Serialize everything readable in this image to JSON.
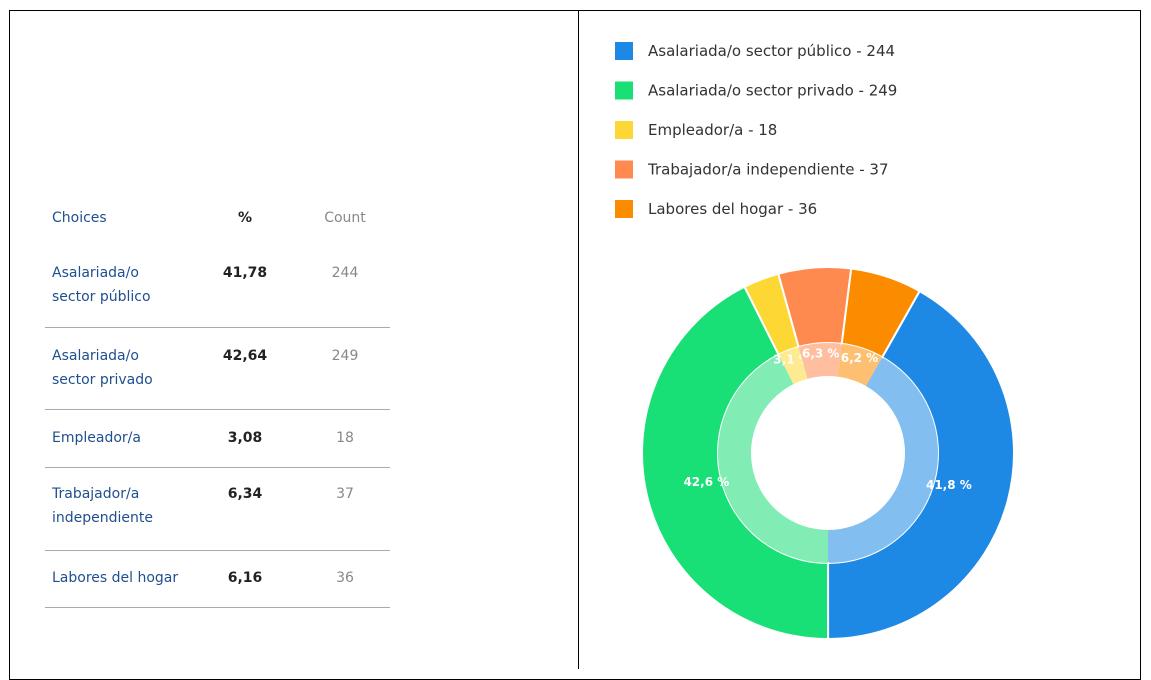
{
  "table": {
    "header": [
      "Choices",
      "%",
      "Count"
    ],
    "rows": [
      [
        [
          "Asalariada/o",
          "sector público"
        ],
        "41,78",
        244
      ],
      [
        [
          "Asalariada/o",
          "sector privado"
        ],
        "42,64",
        249
      ],
      [
        [
          "Empleador/a"
        ],
        "3,08",
        18
      ],
      [
        [
          "Trabajador/a",
          "independiente"
        ],
        "6,34",
        37
      ],
      [
        [
          "Labores del hogar"
        ],
        "6,16",
        36
      ]
    ]
  },
  "chart_data": {
    "type": "donut",
    "categories": [
      "Asalariada/o sector público - 244",
      "Asalariada/o sector privado - 249",
      "Empleador/a - 18",
      "Trabajador/a independiente - 37",
      "Labores del hogar - 36"
    ],
    "values": [
      41.8,
      42.6,
      3.1,
      6.3,
      6.2
    ],
    "value_labels": [
      "41,8 %",
      "42,6 %",
      "3,1 %",
      "6,3 %",
      "6,2 %"
    ],
    "colors": [
      "#1e88e5",
      "#19df77",
      "#fdd835",
      "#ff8a50",
      "#fb8c00"
    ]
  }
}
